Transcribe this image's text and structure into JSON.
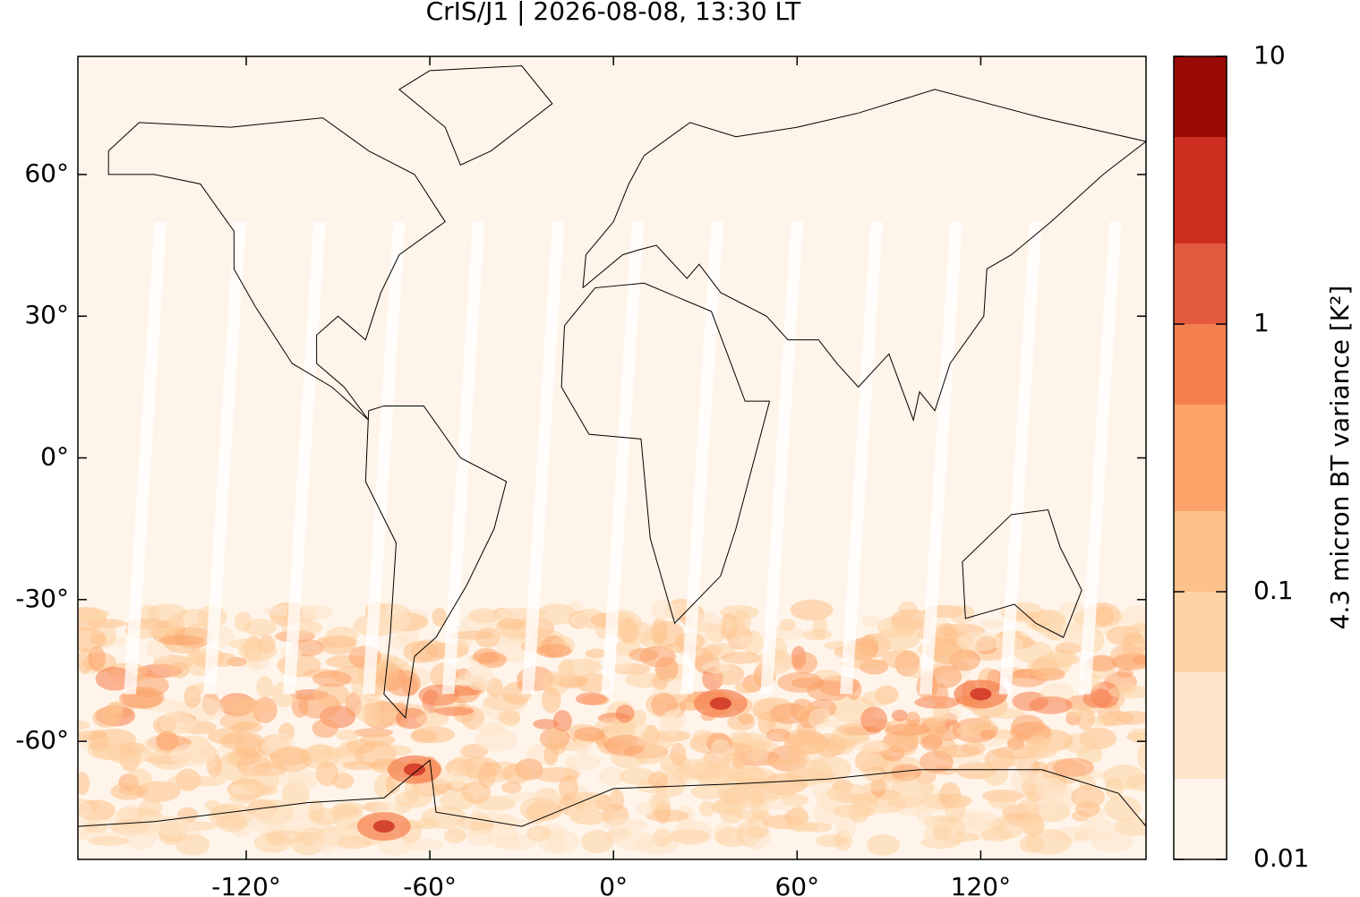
{
  "chart_data": {
    "type": "map",
    "title": "CrIS/J1 | 2026-08-08, 13:30 LT",
    "xlim": [
      -175,
      174
    ],
    "ylim": [
      -85,
      85
    ],
    "xticks": [
      {
        "value": -120,
        "label": "-120°"
      },
      {
        "value": -60,
        "label": "-60°"
      },
      {
        "value": 0,
        "label": "0°"
      },
      {
        "value": 60,
        "label": "60°"
      },
      {
        "value": 120,
        "label": "120°"
      }
    ],
    "yticks": [
      {
        "value": 60,
        "label": "60°"
      },
      {
        "value": 30,
        "label": "30°"
      },
      {
        "value": 0,
        "label": "0°"
      },
      {
        "value": -30,
        "label": "-30°"
      },
      {
        "value": -60,
        "label": "-60°"
      }
    ],
    "colorbar": {
      "label": "4.3 micron BT variance [K²]",
      "log": true,
      "lim": [
        0.01,
        10
      ],
      "ticks": [
        0.01,
        0.1,
        1,
        10
      ],
      "levels": [
        0.01,
        0.02,
        0.05,
        0.1,
        0.2,
        0.5,
        1,
        2,
        5,
        10
      ],
      "colors": [
        "#fff4e9",
        "#fde5cb",
        "#fdd3a6",
        "#fdc18a",
        "#fca36a",
        "#f5804f",
        "#e45a3e",
        "#cd2e1f",
        "#9a0a04"
      ]
    }
  }
}
